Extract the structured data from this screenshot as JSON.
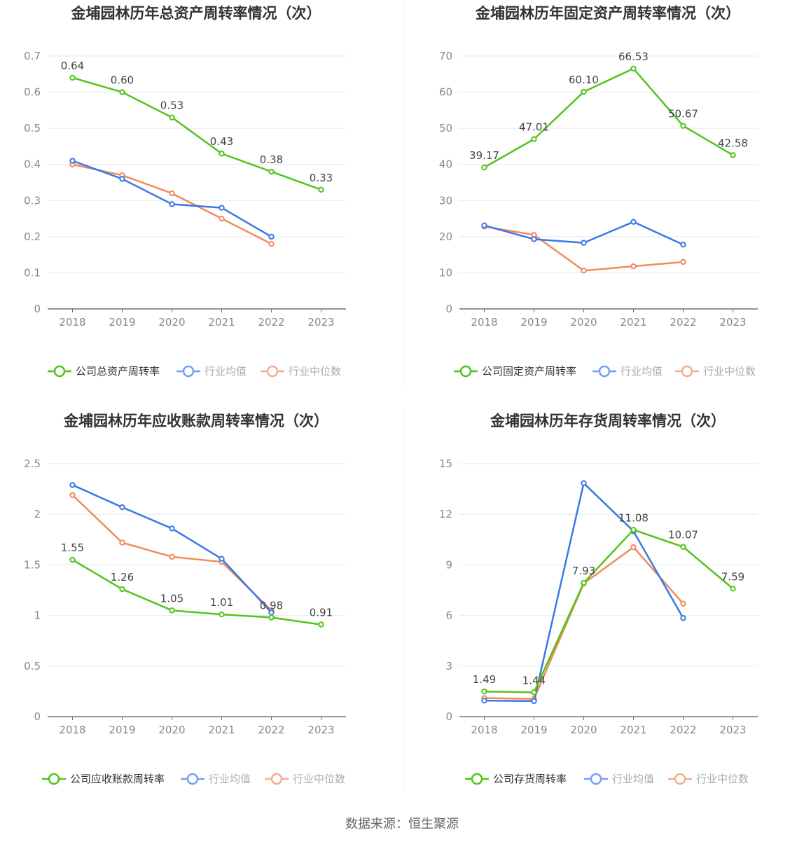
{
  "colors": {
    "company": "#52c41a",
    "avg": "#3b78e7",
    "median": "#f08c5a"
  },
  "source": "数据来源：恒生聚源",
  "chart_data": [
    {
      "type": "line",
      "title": "金埔园林历年总资产周转率情况（次）",
      "categories": [
        "2018",
        "2019",
        "2020",
        "2021",
        "2022",
        "2023"
      ],
      "y_ticks": [
        "0",
        "0.1",
        "0.2",
        "0.3",
        "0.4",
        "0.5",
        "0.6",
        "0.7"
      ],
      "ylim": [
        0,
        0.7
      ],
      "series": [
        {
          "name": "公司总资产周转率",
          "role": "company",
          "values": [
            0.64,
            0.6,
            0.53,
            0.43,
            0.38,
            0.33
          ],
          "labels": [
            "0.64",
            "0.60",
            "0.53",
            "0.43",
            "0.38",
            "0.33"
          ]
        },
        {
          "name": "行业均值",
          "role": "avg",
          "values": [
            0.41,
            0.36,
            0.29,
            0.28,
            0.2,
            null
          ]
        },
        {
          "name": "行业中位数",
          "role": "median",
          "values": [
            0.4,
            0.37,
            0.32,
            0.25,
            0.18,
            null
          ]
        }
      ]
    },
    {
      "type": "line",
      "title": "金埔园林历年固定资产周转率情况（次）",
      "categories": [
        "2018",
        "2019",
        "2020",
        "2021",
        "2022",
        "2023"
      ],
      "y_ticks": [
        "0",
        "10",
        "20",
        "30",
        "40",
        "50",
        "60",
        "70"
      ],
      "ylim": [
        0,
        70
      ],
      "series": [
        {
          "name": "公司固定资产周转率",
          "role": "company",
          "values": [
            39.17,
            47.01,
            60.1,
            66.53,
            50.67,
            42.58
          ],
          "labels": [
            "39.17",
            "47.01",
            "60.10",
            "66.53",
            "50.67",
            "42.58"
          ]
        },
        {
          "name": "行业均值",
          "role": "avg",
          "values": [
            23.1,
            19.3,
            18.3,
            24.1,
            17.8,
            null
          ]
        },
        {
          "name": "行业中位数",
          "role": "median",
          "values": [
            22.8,
            20.5,
            10.6,
            11.8,
            13.0,
            null
          ]
        }
      ]
    },
    {
      "type": "line",
      "title": "金埔园林历年应收账款周转率情况（次）",
      "categories": [
        "2018",
        "2019",
        "2020",
        "2021",
        "2022",
        "2023"
      ],
      "y_ticks": [
        "0",
        "0.5",
        "1",
        "1.5",
        "2",
        "2.5"
      ],
      "ylim": [
        0,
        2.5
      ],
      "series": [
        {
          "name": "公司应收账款周转率",
          "role": "company",
          "values": [
            1.55,
            1.26,
            1.05,
            1.01,
            0.98,
            0.91
          ],
          "labels": [
            "1.55",
            "1.26",
            "1.05",
            "1.01",
            "0.98",
            "0.91"
          ]
        },
        {
          "name": "行业均值",
          "role": "avg",
          "values": [
            2.29,
            2.07,
            1.86,
            1.56,
            1.03,
            null
          ]
        },
        {
          "name": "行业中位数",
          "role": "median",
          "values": [
            2.19,
            1.72,
            1.58,
            1.53,
            1.05,
            null
          ]
        }
      ]
    },
    {
      "type": "line",
      "title": "金埔园林历年存货周转率情况（次）",
      "categories": [
        "2018",
        "2019",
        "2020",
        "2021",
        "2022",
        "2023"
      ],
      "y_ticks": [
        "0",
        "3",
        "6",
        "9",
        "12",
        "15"
      ],
      "ylim": [
        0,
        15
      ],
      "series": [
        {
          "name": "公司存货周转率",
          "role": "company",
          "values": [
            1.49,
            1.44,
            7.93,
            11.08,
            10.07,
            7.59
          ],
          "labels": [
            "1.49",
            "1.44",
            "7.93",
            "11.08",
            "10.07",
            "7.59"
          ]
        },
        {
          "name": "行业均值",
          "role": "avg",
          "values": [
            0.95,
            0.92,
            13.85,
            11.0,
            5.85,
            null
          ]
        },
        {
          "name": "行业中位数",
          "role": "median",
          "values": [
            1.1,
            1.05,
            7.9,
            10.05,
            6.7,
            null
          ]
        }
      ]
    }
  ]
}
